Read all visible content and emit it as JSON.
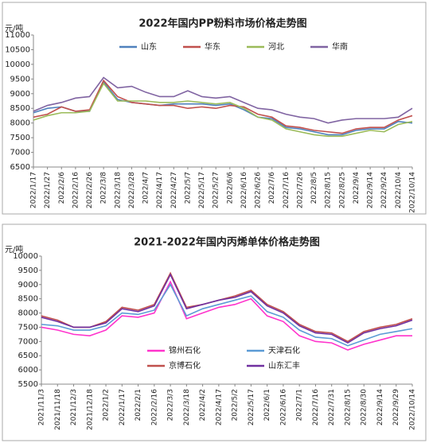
{
  "chart_data": [
    {
      "type": "line",
      "title": "2022年国内PP粉料市场价格走势图",
      "y_label": "元/吨",
      "categories": [
        "2022/1/17",
        "2022/1/27",
        "2022/2/6",
        "2022/2/16",
        "2022/2/26",
        "2022/3/8",
        "2022/3/18",
        "2022/3/28",
        "2022/4/7",
        "2022/4/17",
        "2022/4/27",
        "2022/5/7",
        "2022/5/17",
        "2022/5/27",
        "2022/6/6",
        "2022/6/16",
        "2022/6/26",
        "2022/7/6",
        "2022/7/16",
        "2022/7/26",
        "2022/8/5",
        "2022/8/15",
        "2022/8/25",
        "2022/9/4",
        "2022/9/14",
        "2022/9/24",
        "2022/10/4",
        "2022/10/14"
      ],
      "series": [
        {
          "name": "山东",
          "color": "#4f81bd",
          "values": [
            8350,
            8500,
            8550,
            8400,
            8400,
            9400,
            8800,
            8700,
            8650,
            8600,
            8650,
            8650,
            8650,
            8600,
            8650,
            8450,
            8200,
            8150,
            7850,
            7800,
            7700,
            7600,
            7600,
            7750,
            7800,
            7800,
            8050,
            8000
          ]
        },
        {
          "name": "华东",
          "color": "#c0504d",
          "values": [
            8200,
            8300,
            8550,
            8400,
            8450,
            9450,
            8900,
            8700,
            8650,
            8600,
            8600,
            8500,
            8550,
            8500,
            8600,
            8550,
            8300,
            8200,
            7900,
            7850,
            7750,
            7700,
            7650,
            7800,
            7850,
            7850,
            8100,
            8250
          ]
        },
        {
          "name": "河北",
          "color": "#9bbb59",
          "values": [
            8100,
            8250,
            8350,
            8350,
            8400,
            9350,
            8750,
            8750,
            8750,
            8700,
            8700,
            8750,
            8700,
            8650,
            8700,
            8500,
            8200,
            8100,
            7800,
            7700,
            7600,
            7550,
            7550,
            7650,
            7750,
            7700,
            7950,
            8050
          ]
        },
        {
          "name": "华南",
          "color": "#8064a2",
          "values": [
            8400,
            8600,
            8700,
            8850,
            8900,
            9550,
            9200,
            9250,
            9050,
            8900,
            8900,
            9100,
            8900,
            8850,
            8900,
            8700,
            8500,
            8450,
            8300,
            8200,
            8150,
            8000,
            8100,
            8150,
            8150,
            8150,
            8200,
            8500
          ]
        }
      ],
      "ylim": [
        6500,
        11000
      ],
      "yticks": [
        6500,
        7000,
        7500,
        8000,
        8500,
        9000,
        9500,
        10000,
        10500,
        11000
      ],
      "grid": false,
      "legend": "top"
    },
    {
      "type": "line",
      "title": "2021-2022年国内丙烯单体价格走势图",
      "y_label": "元/吨",
      "categories": [
        "2021/11/3",
        "2021/11/18",
        "2021/12/3",
        "2021/12/18",
        "2022/1/2",
        "2022/1/17",
        "2022/2/1",
        "2022/2/16",
        "2022/3/3",
        "2022/3/18",
        "2022/4/2",
        "2022/4/17",
        "2022/5/2",
        "2022/5/17",
        "2022/6/1",
        "2022/6/16",
        "2022/7/1",
        "2022/7/16",
        "2022/7/31",
        "2022/8/15",
        "2022/8/30",
        "2022/9/14",
        "2022/9/29",
        "2022/10/14"
      ],
      "series": [
        {
          "name": "锦州石化",
          "color": "#ff33cc",
          "values": [
            7500,
            7400,
            7250,
            7200,
            7400,
            7900,
            7850,
            8000,
            9100,
            7800,
            8000,
            8200,
            8300,
            8500,
            7900,
            7700,
            7200,
            7000,
            6950,
            6700,
            6900,
            7050,
            7200,
            7200
          ]
        },
        {
          "name": "天津石化",
          "color": "#5b9bd5",
          "values": [
            7600,
            7550,
            7400,
            7400,
            7550,
            8000,
            7950,
            8100,
            9000,
            7900,
            8150,
            8300,
            8450,
            8600,
            8050,
            7850,
            7400,
            7150,
            7100,
            6850,
            7050,
            7250,
            7350,
            7450
          ]
        },
        {
          "name": "京博石化",
          "color": "#c0504d",
          "values": [
            7900,
            7750,
            7500,
            7500,
            7700,
            8200,
            8100,
            8300,
            9400,
            8200,
            8300,
            8450,
            8600,
            8800,
            8300,
            8050,
            7600,
            7350,
            7300,
            7000,
            7350,
            7500,
            7600,
            7800
          ]
        },
        {
          "name": "山东汇丰",
          "color": "#7030a0",
          "values": [
            7850,
            7700,
            7500,
            7500,
            7650,
            8150,
            8050,
            8250,
            9350,
            8150,
            8300,
            8450,
            8550,
            8750,
            8250,
            8000,
            7550,
            7300,
            7250,
            6950,
            7300,
            7450,
            7550,
            7750
          ]
        }
      ],
      "ylim": [
        5500,
        10000
      ],
      "yticks": [
        5500,
        6000,
        6500,
        7000,
        7500,
        8000,
        8500,
        9000,
        9500,
        10000
      ],
      "grid": false,
      "legend": "lower left"
    }
  ]
}
